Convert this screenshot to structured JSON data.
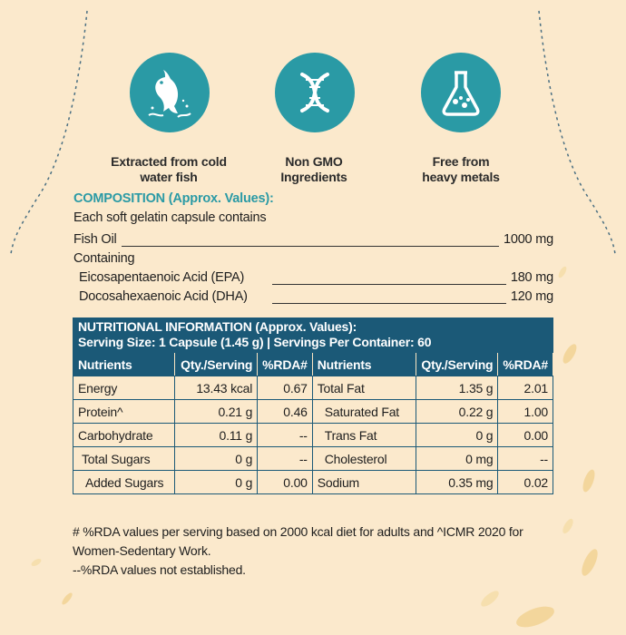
{
  "features": [
    {
      "icon": "fish-icon",
      "label_lines": [
        "Extracted from cold",
        "water fish"
      ]
    },
    {
      "icon": "dna-icon",
      "label_lines": [
        "Non GMO",
        "Ingredients"
      ]
    },
    {
      "icon": "flask-icon",
      "label_lines": [
        "Free from",
        "heavy metals"
      ]
    }
  ],
  "composition": {
    "title": "COMPOSITION (Approx. Values):",
    "intro": "Each soft gelatin capsule contains",
    "fish_oil": {
      "label": "Fish Oil",
      "value": "1000 mg"
    },
    "containing": "Containing",
    "epa": {
      "label": "Eicosapentaenoic Acid (EPA)",
      "value": "180 mg"
    },
    "dha": {
      "label": "Docosahexaenoic Acid (DHA)",
      "value": "120 mg"
    }
  },
  "nutrition": {
    "title": "NUTRITIONAL INFORMATION (Approx. Values):",
    "serving": "Serving Size: 1 Capsule (1.45 g) | Servings Per Container: 60",
    "headers": [
      "Nutrients",
      "Qty./Serving",
      "%RDA#",
      "Nutrients",
      "Qty./Serving",
      "%RDA#"
    ],
    "rows": [
      [
        "Energy",
        "13.43 kcal",
        "0.67",
        "Total Fat",
        "1.35 g",
        "2.01"
      ],
      [
        "Protein^",
        "0.21 g",
        "0.46",
        "Saturated Fat",
        "0.22 g",
        "1.00"
      ],
      [
        "Carbohydrate",
        "0.11 g",
        "--",
        "Trans Fat",
        "0 g",
        "0.00"
      ],
      [
        "Total Sugars",
        "0 g",
        "--",
        "Cholesterol",
        "0 mg",
        "--"
      ],
      [
        "Added Sugars",
        "0 g",
        "0.00",
        "Sodium",
        "0.35 mg",
        "0.02"
      ]
    ]
  },
  "footnotes": {
    "line1": "# %RDA values per serving based on 2000 kcal diet for adults and ^ICMR 2020 for",
    "line2": "Women-Sedentary Work.",
    "line3": "--%RDA values not established."
  },
  "colors": {
    "teal": "#2a9aa5",
    "navy": "#1b5977",
    "cream": "#fbe5c2"
  }
}
